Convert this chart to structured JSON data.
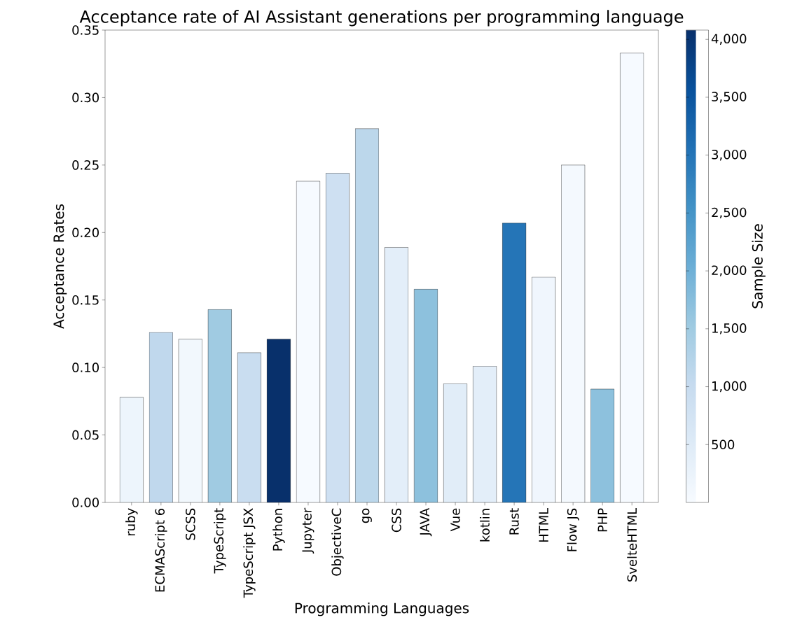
{
  "chart_data": {
    "type": "bar",
    "title": "Acceptance rate of AI Assistant generations per programming language",
    "xlabel": "Programming Languages",
    "ylabel": "Acceptance Rates",
    "clabel": "Sample Size",
    "categories": [
      "ruby",
      "ECMAScript 6",
      "SCSS",
      "TypeScript",
      "TypeScript JSX",
      "Python",
      "Jupyter",
      "ObjectiveC",
      "go",
      "CSS",
      "JAVA",
      "Vue",
      "kotlin",
      "Rust",
      "HTML",
      "Flow JS",
      "PHP",
      "SvelteHTML"
    ],
    "values": [
      0.078,
      0.126,
      0.121,
      0.143,
      0.111,
      0.121,
      0.238,
      0.244,
      0.277,
      0.189,
      0.158,
      0.088,
      0.101,
      0.207,
      0.167,
      0.25,
      0.084,
      0.333
    ],
    "cvalues": [
      200,
      1100,
      100,
      1500,
      950,
      4080,
      30,
      850,
      1150,
      400,
      1700,
      450,
      400,
      3000,
      150,
      60,
      1700,
      20
    ],
    "ylim": [
      0,
      0.35
    ],
    "yticks": [
      {
        "value": 0,
        "label": "0.00"
      },
      {
        "value": 0.05,
        "label": "0.05"
      },
      {
        "value": 0.1,
        "label": "0.10"
      },
      {
        "value": 0.15,
        "label": "0.15"
      },
      {
        "value": 0.2,
        "label": "0.20"
      },
      {
        "value": 0.25,
        "label": "0.25"
      },
      {
        "value": 0.3,
        "label": "0.30"
      },
      {
        "value": 0.35,
        "label": "0.35"
      }
    ],
    "clim": [
      0,
      4080
    ],
    "cticks": [
      500,
      {
        "value": 1000,
        "label": "1,000"
      },
      {
        "value": 1500,
        "label": "1,500"
      },
      {
        "value": 2000,
        "label": "2,000"
      },
      {
        "value": 2500,
        "label": "2,500"
      },
      {
        "value": 3000,
        "label": "3,000"
      },
      {
        "value": 3500,
        "label": "3,500"
      },
      {
        "value": 4000,
        "label": "4,000"
      }
    ],
    "grid": false
  }
}
